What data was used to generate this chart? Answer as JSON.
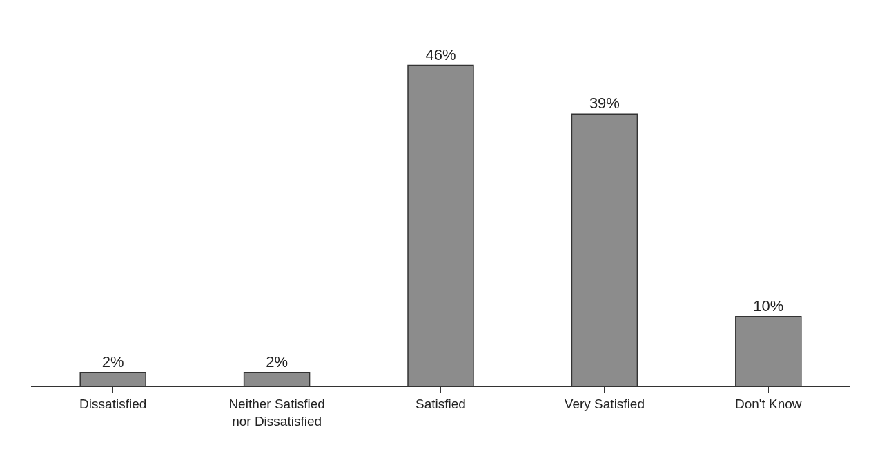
{
  "chart_data": {
    "type": "bar",
    "categories": [
      "Dissatisfied",
      "Neither Satisfied\nnor Dissatisfied",
      "Satisfied",
      "Very Satisfied",
      "Don't Know"
    ],
    "values": [
      2,
      2,
      46,
      39,
      10
    ],
    "value_labels": [
      "2%",
      "2%",
      "46%",
      "39%",
      "10%"
    ],
    "color": "#8c8c8c"
  }
}
